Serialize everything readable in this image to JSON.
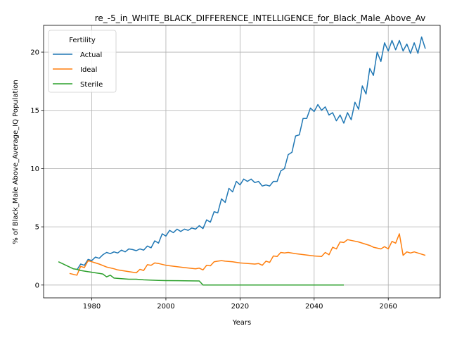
{
  "chart_data": {
    "type": "line",
    "title": "re_-5_in_WHITE_BLACK_DIFFERENCE_INTELLIGENCE_for_Black_Male_Above_Av",
    "xlabel": "Years",
    "ylabel": "% of Black_Male Above_Average_IQ Population",
    "xlim": [
      1967,
      2074
    ],
    "ylim": [
      -1.1,
      22.3
    ],
    "xticks": [
      1980,
      2000,
      2020,
      2040,
      2060
    ],
    "yticks": [
      0,
      5,
      10,
      15,
      20
    ],
    "grid": true,
    "legend": {
      "title": "Fertility",
      "placement": "top-left"
    },
    "series": [
      {
        "name": "Actual",
        "color": "#1f77b4",
        "points": [
          [
            1976,
            1.3
          ],
          [
            1977,
            1.8
          ],
          [
            1978,
            1.7
          ],
          [
            1979,
            2.2
          ],
          [
            1980,
            2.1
          ],
          [
            1981,
            2.4
          ],
          [
            1982,
            2.3
          ],
          [
            1983,
            2.6
          ],
          [
            1984,
            2.8
          ],
          [
            1985,
            2.7
          ],
          [
            1986,
            2.85
          ],
          [
            1987,
            2.75
          ],
          [
            1988,
            3.0
          ],
          [
            1989,
            2.85
          ],
          [
            1990,
            3.1
          ],
          [
            1991,
            3.05
          ],
          [
            1992,
            2.95
          ],
          [
            1993,
            3.1
          ],
          [
            1994,
            3.0
          ],
          [
            1995,
            3.35
          ],
          [
            1996,
            3.2
          ],
          [
            1997,
            3.8
          ],
          [
            1998,
            3.6
          ],
          [
            1999,
            4.4
          ],
          [
            2000,
            4.2
          ],
          [
            2001,
            4.7
          ],
          [
            2002,
            4.5
          ],
          [
            2003,
            4.8
          ],
          [
            2004,
            4.6
          ],
          [
            2005,
            4.8
          ],
          [
            2006,
            4.7
          ],
          [
            2007,
            4.9
          ],
          [
            2008,
            4.8
          ],
          [
            2009,
            5.1
          ],
          [
            2010,
            4.85
          ],
          [
            2011,
            5.6
          ],
          [
            2012,
            5.4
          ],
          [
            2013,
            6.3
          ],
          [
            2014,
            6.2
          ],
          [
            2015,
            7.4
          ],
          [
            2016,
            7.1
          ],
          [
            2017,
            8.3
          ],
          [
            2018,
            8.0
          ],
          [
            2019,
            8.9
          ],
          [
            2020,
            8.6
          ],
          [
            2021,
            9.1
          ],
          [
            2022,
            8.9
          ],
          [
            2023,
            9.1
          ],
          [
            2024,
            8.8
          ],
          [
            2025,
            8.9
          ],
          [
            2026,
            8.5
          ],
          [
            2027,
            8.6
          ],
          [
            2028,
            8.5
          ],
          [
            2029,
            8.9
          ],
          [
            2030,
            8.9
          ],
          [
            2031,
            9.8
          ],
          [
            2032,
            10.0
          ],
          [
            2033,
            11.2
          ],
          [
            2034,
            11.4
          ],
          [
            2035,
            12.8
          ],
          [
            2036,
            12.9
          ],
          [
            2037,
            14.3
          ],
          [
            2038,
            14.3
          ],
          [
            2039,
            15.2
          ],
          [
            2040,
            14.9
          ],
          [
            2041,
            15.5
          ],
          [
            2042,
            15.0
          ],
          [
            2043,
            15.3
          ],
          [
            2044,
            14.6
          ],
          [
            2045,
            14.8
          ],
          [
            2046,
            14.1
          ],
          [
            2047,
            14.6
          ],
          [
            2048,
            13.9
          ],
          [
            2049,
            14.8
          ],
          [
            2050,
            14.2
          ],
          [
            2051,
            15.7
          ],
          [
            2052,
            15.1
          ],
          [
            2053,
            17.1
          ],
          [
            2054,
            16.4
          ],
          [
            2055,
            18.6
          ],
          [
            2056,
            18.0
          ],
          [
            2057,
            20.0
          ],
          [
            2058,
            19.2
          ],
          [
            2059,
            20.8
          ],
          [
            2060,
            20.1
          ],
          [
            2061,
            21.0
          ],
          [
            2062,
            20.2
          ],
          [
            2063,
            21.0
          ],
          [
            2064,
            20.1
          ],
          [
            2065,
            20.7
          ],
          [
            2066,
            19.9
          ],
          [
            2067,
            20.8
          ],
          [
            2068,
            19.9
          ],
          [
            2069,
            21.3
          ],
          [
            2070,
            20.3
          ]
        ]
      },
      {
        "name": "Ideal",
        "color": "#ff7f0e",
        "points": [
          [
            1974,
            1.0
          ],
          [
            1976,
            0.85
          ],
          [
            1977,
            1.6
          ],
          [
            1978,
            1.5
          ],
          [
            1979,
            2.1
          ],
          [
            1981,
            1.9
          ],
          [
            1982,
            1.8
          ],
          [
            1984,
            1.55
          ],
          [
            1986,
            1.4
          ],
          [
            1987,
            1.3
          ],
          [
            1990,
            1.15
          ],
          [
            1992,
            1.05
          ],
          [
            1993,
            1.35
          ],
          [
            1994,
            1.25
          ],
          [
            1995,
            1.75
          ],
          [
            1996,
            1.7
          ],
          [
            1997,
            1.9
          ],
          [
            1998,
            1.85
          ],
          [
            2000,
            1.7
          ],
          [
            2005,
            1.5
          ],
          [
            2008,
            1.4
          ],
          [
            2009,
            1.45
          ],
          [
            2010,
            1.3
          ],
          [
            2011,
            1.7
          ],
          [
            2012,
            1.65
          ],
          [
            2013,
            2.0
          ],
          [
            2014,
            2.05
          ],
          [
            2015,
            2.1
          ],
          [
            2016,
            2.05
          ],
          [
            2018,
            2.0
          ],
          [
            2020,
            1.9
          ],
          [
            2024,
            1.8
          ],
          [
            2025,
            1.85
          ],
          [
            2026,
            1.7
          ],
          [
            2027,
            2.05
          ],
          [
            2028,
            1.95
          ],
          [
            2029,
            2.5
          ],
          [
            2030,
            2.45
          ],
          [
            2031,
            2.8
          ],
          [
            2032,
            2.75
          ],
          [
            2033,
            2.8
          ],
          [
            2035,
            2.7
          ],
          [
            2040,
            2.5
          ],
          [
            2042,
            2.45
          ],
          [
            2043,
            2.8
          ],
          [
            2044,
            2.6
          ],
          [
            2045,
            3.25
          ],
          [
            2046,
            3.1
          ],
          [
            2047,
            3.7
          ],
          [
            2048,
            3.65
          ],
          [
            2049,
            3.9
          ],
          [
            2052,
            3.7
          ],
          [
            2055,
            3.4
          ],
          [
            2056,
            3.25
          ],
          [
            2058,
            3.1
          ],
          [
            2059,
            3.3
          ],
          [
            2060,
            3.1
          ],
          [
            2061,
            3.75
          ],
          [
            2062,
            3.6
          ],
          [
            2063,
            4.4
          ],
          [
            2064,
            2.55
          ],
          [
            2065,
            2.85
          ],
          [
            2066,
            2.75
          ],
          [
            2067,
            2.85
          ],
          [
            2068,
            2.75
          ],
          [
            2070,
            2.55
          ]
        ]
      },
      {
        "name": "Sterile",
        "color": "#2ca02c",
        "points": [
          [
            1971,
            2.0
          ],
          [
            1972,
            1.85
          ],
          [
            1974,
            1.55
          ],
          [
            1975,
            1.4
          ],
          [
            1976,
            1.35
          ],
          [
            1977,
            1.25
          ],
          [
            1978,
            1.2
          ],
          [
            1980,
            1.1
          ],
          [
            1982,
            1.0
          ],
          [
            1983,
            0.95
          ],
          [
            1984,
            0.7
          ],
          [
            1985,
            0.85
          ],
          [
            1986,
            0.6
          ],
          [
            1988,
            0.55
          ],
          [
            1990,
            0.5
          ],
          [
            1992,
            0.5
          ],
          [
            1994,
            0.45
          ],
          [
            1998,
            0.4
          ],
          [
            2000,
            0.38
          ],
          [
            2005,
            0.37
          ],
          [
            2009,
            0.35
          ],
          [
            2010,
            0.0
          ],
          [
            2020,
            0.0
          ],
          [
            2030,
            0.0
          ],
          [
            2040,
            0.0
          ],
          [
            2048,
            0.0
          ]
        ]
      }
    ]
  }
}
